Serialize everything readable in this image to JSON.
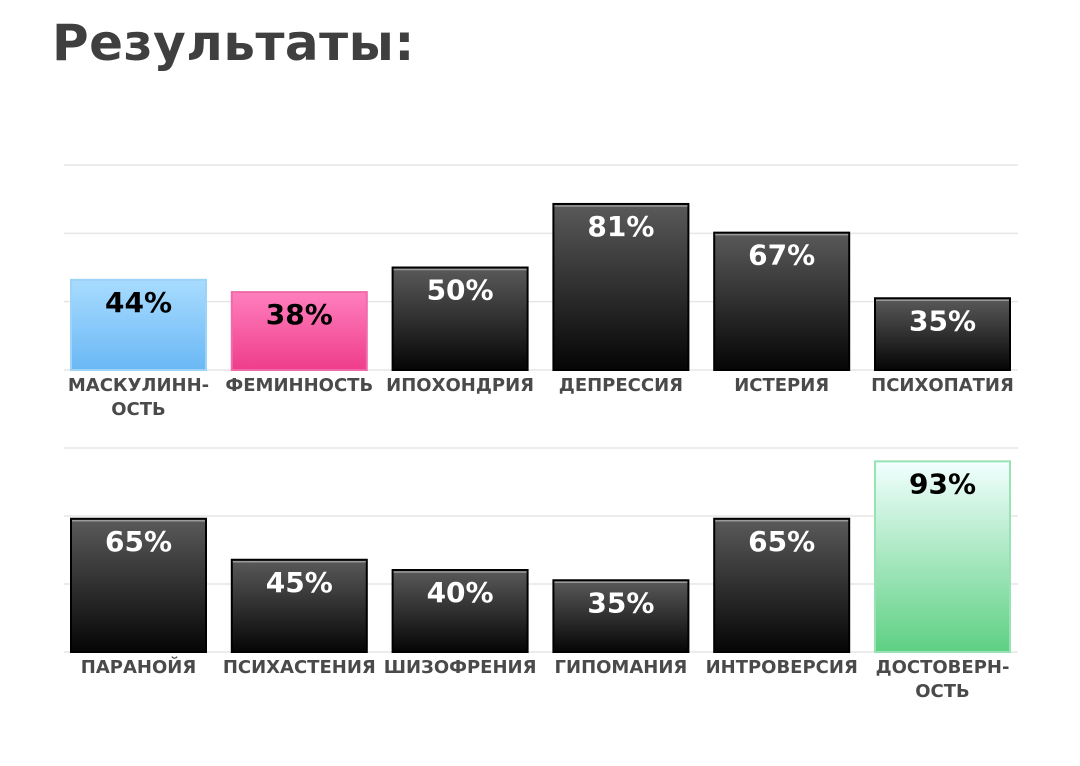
{
  "header": {
    "title": "Результаты:"
  },
  "chart_data": [
    {
      "type": "bar",
      "title": "",
      "xlabel": "",
      "ylabel": "",
      "ylim": [
        0,
        100
      ],
      "grid": true,
      "categories": [
        [
          "МАСКУЛИНН-",
          "ОСТЬ"
        ],
        [
          "ФЕМИННОСТЬ"
        ],
        [
          "ИПОХОНДРИЯ"
        ],
        [
          "ДЕПРЕССИЯ"
        ],
        [
          "ИСТЕРИЯ"
        ],
        [
          "ПСИХОПАТИЯ"
        ]
      ],
      "values": [
        44,
        38,
        50,
        81,
        67,
        35
      ],
      "value_labels": [
        "44%",
        "38%",
        "50%",
        "81%",
        "67%",
        "35%"
      ],
      "bar_styles": [
        "blue",
        "pink",
        "dark",
        "dark",
        "dark",
        "dark"
      ]
    },
    {
      "type": "bar",
      "title": "",
      "xlabel": "",
      "ylabel": "",
      "ylim": [
        0,
        100
      ],
      "grid": true,
      "categories": [
        [
          "ПАРАНОЙЯ"
        ],
        [
          "ПСИХАСТЕНИЯ"
        ],
        [
          "ШИЗОФРЕНИЯ"
        ],
        [
          "ГИПОМАНИЯ"
        ],
        [
          "ИНТРОВЕРСИЯ"
        ],
        [
          "ДОСТОВЕРН-",
          "ОСТЬ"
        ]
      ],
      "values": [
        65,
        45,
        40,
        35,
        65,
        93
      ],
      "value_labels": [
        "65%",
        "45%",
        "40%",
        "35%",
        "65%",
        "93%"
      ],
      "bar_styles": [
        "dark",
        "dark",
        "dark",
        "dark",
        "dark",
        "green"
      ]
    }
  ],
  "colors": {
    "blue_top": "#a8dcff",
    "blue_bottom": "#6ab8f5",
    "pink_top": "#ff7fbe",
    "pink_bottom": "#ef3d8a",
    "dark_top": "#5a5a5a",
    "dark_bottom": "#050505",
    "green_top": "#f2ffff",
    "green_bottom": "#5ed083",
    "grid": "#e6e6e6",
    "value_light": "#ffffff",
    "value_dark": "#000000"
  }
}
